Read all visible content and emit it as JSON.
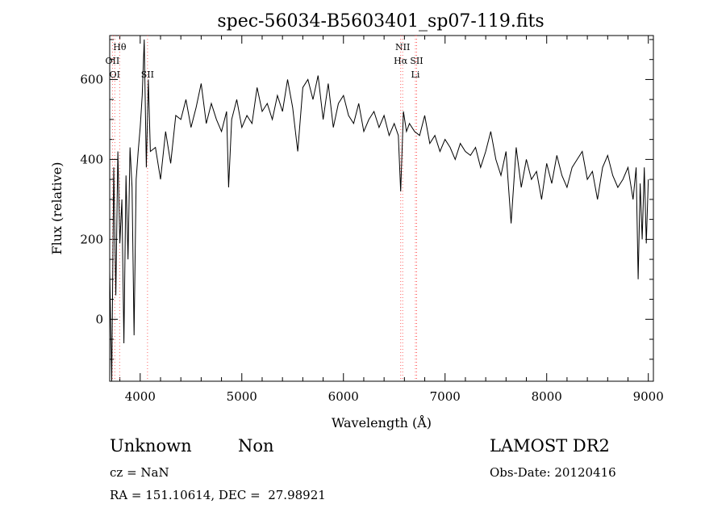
{
  "footer": {
    "class": "Unknown",
    "subclass": "Non",
    "cz": "cz = NaN",
    "coords": "RA = 151.10614, DEC =  27.98921",
    "survey": "LAMOST DR2",
    "obs_date": "Obs-Date: 20120416"
  },
  "chart_data": {
    "type": "line",
    "title": "spec-56034-B5603401_sp07-119.fits",
    "xlabel": "Wavelength (Å)",
    "ylabel": "Flux (relative)",
    "xlim": [
      3700,
      9050
    ],
    "ylim": [
      -155,
      710
    ],
    "xticks": [
      4000,
      5000,
      6000,
      7000,
      8000,
      9000
    ],
    "yticks": [
      0,
      200,
      400,
      600
    ],
    "grid": false,
    "line_color": "#000000",
    "marker_color": "#ff6666",
    "lines": [
      {
        "label": "Hθ",
        "x": 3798,
        "row": 0
      },
      {
        "label": "OII",
        "x": 3727,
        "row": 1
      },
      {
        "label": "OI",
        "x": 3750,
        "row": 2
      },
      {
        "label": "SII",
        "x": 4072,
        "row": 2
      },
      {
        "label": "NII",
        "x": 6583,
        "row": 0
      },
      {
        "label": "Hα",
        "x": 6563,
        "row": 1
      },
      {
        "label": "SII",
        "x": 6720,
        "row": 1
      },
      {
        "label": "Li",
        "x": 6708,
        "row": 2
      }
    ],
    "series": [
      {
        "x": [
          3700,
          3720,
          3740,
          3760,
          3780,
          3800,
          3820,
          3840,
          3860,
          3880,
          3900,
          3920,
          3940,
          3960,
          3980,
          4000,
          4020,
          4040,
          4060,
          4080,
          4100,
          4150,
          4200,
          4250,
          4300,
          4350,
          4400,
          4450,
          4500,
          4550,
          4600,
          4650,
          4700,
          4750,
          4800,
          4850,
          4870,
          4900,
          4950,
          5000,
          5050,
          5100,
          5150,
          5200,
          5250,
          5300,
          5350,
          5400,
          5450,
          5500,
          5550,
          5600,
          5650,
          5700,
          5750,
          5800,
          5850,
          5900,
          5950,
          6000,
          6050,
          6100,
          6150,
          6200,
          6250,
          6300,
          6350,
          6400,
          6450,
          6500,
          6540,
          6563,
          6590,
          6620,
          6650,
          6700,
          6750,
          6800,
          6850,
          6900,
          6950,
          7000,
          7050,
          7100,
          7150,
          7200,
          7250,
          7300,
          7350,
          7400,
          7450,
          7500,
          7550,
          7600,
          7650,
          7700,
          7750,
          7800,
          7850,
          7900,
          7950,
          8000,
          8050,
          8100,
          8150,
          8200,
          8250,
          8300,
          8350,
          8400,
          8450,
          8500,
          8550,
          8600,
          8650,
          8700,
          8750,
          8800,
          8850,
          8880,
          8900,
          8920,
          8940,
          8960,
          8980,
          9000
        ],
        "y": [
          120,
          -160,
          380,
          60,
          420,
          190,
          300,
          -60,
          360,
          150,
          430,
          330,
          -40,
          350,
          420,
          480,
          560,
          700,
          380,
          600,
          420,
          430,
          350,
          470,
          390,
          510,
          500,
          550,
          480,
          530,
          590,
          490,
          540,
          500,
          470,
          520,
          330,
          500,
          550,
          480,
          510,
          490,
          580,
          520,
          540,
          500,
          560,
          520,
          600,
          530,
          420,
          580,
          600,
          550,
          610,
          500,
          590,
          480,
          540,
          560,
          510,
          490,
          540,
          470,
          500,
          520,
          480,
          510,
          460,
          490,
          460,
          320,
          520,
          470,
          490,
          470,
          460,
          510,
          440,
          460,
          420,
          450,
          430,
          400,
          440,
          420,
          410,
          430,
          380,
          420,
          470,
          400,
          360,
          420,
          240,
          430,
          330,
          400,
          350,
          370,
          300,
          390,
          340,
          410,
          360,
          330,
          380,
          400,
          420,
          350,
          370,
          300,
          380,
          410,
          360,
          330,
          350,
          380,
          300,
          380,
          100,
          340,
          200,
          380,
          190,
          350
        ]
      }
    ]
  }
}
